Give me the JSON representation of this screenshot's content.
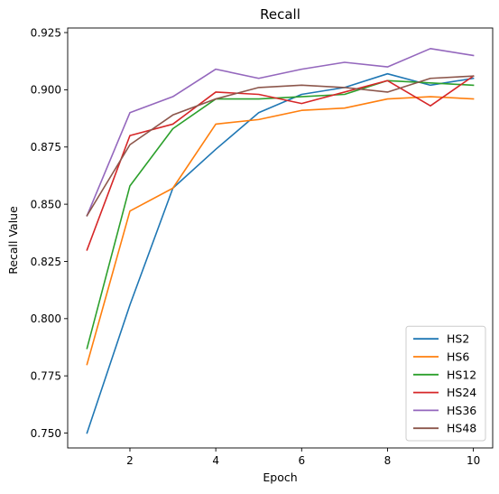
{
  "chart_data": {
    "type": "line",
    "title": "Recall",
    "xlabel": "Epoch",
    "ylabel": "Recall Value",
    "x": [
      1,
      2,
      3,
      4,
      5,
      6,
      7,
      8,
      9,
      10
    ],
    "xlim": [
      0.55,
      10.45
    ],
    "ylim": [
      0.7435,
      0.927
    ],
    "x_ticks": [
      2,
      4,
      6,
      8,
      10
    ],
    "y_ticks": [
      0.75,
      0.775,
      0.8,
      0.825,
      0.85,
      0.875,
      0.9,
      0.925
    ],
    "x_tick_labels": [
      "2",
      "4",
      "6",
      "8",
      "10"
    ],
    "y_tick_labels": [
      "0.750",
      "0.775",
      "0.800",
      "0.825",
      "0.850",
      "0.875",
      "0.900",
      "0.925"
    ],
    "grid": false,
    "legend_position": "lower-right",
    "series": [
      {
        "name": "HS2",
        "color": "#1f77b4",
        "values": [
          0.75,
          0.806,
          0.857,
          0.874,
          0.89,
          0.898,
          0.901,
          0.907,
          0.902,
          0.905
        ]
      },
      {
        "name": "HS6",
        "color": "#ff7f0e",
        "values": [
          0.78,
          0.847,
          0.857,
          0.885,
          0.887,
          0.891,
          0.892,
          0.896,
          0.897,
          0.896
        ]
      },
      {
        "name": "HS12",
        "color": "#2ca02c",
        "values": [
          0.787,
          0.858,
          0.883,
          0.896,
          0.896,
          0.897,
          0.898,
          0.904,
          0.903,
          0.902
        ]
      },
      {
        "name": "HS24",
        "color": "#d62728",
        "values": [
          0.83,
          0.88,
          0.885,
          0.899,
          0.898,
          0.894,
          0.899,
          0.904,
          0.893,
          0.906
        ]
      },
      {
        "name": "HS36",
        "color": "#9467bd",
        "values": [
          0.845,
          0.89,
          0.897,
          0.909,
          0.905,
          0.909,
          0.912,
          0.91,
          0.918,
          0.915
        ]
      },
      {
        "name": "HS48",
        "color": "#8c564b",
        "values": [
          0.845,
          0.876,
          0.889,
          0.896,
          0.901,
          0.902,
          0.901,
          0.899,
          0.905,
          0.906
        ]
      }
    ]
  }
}
